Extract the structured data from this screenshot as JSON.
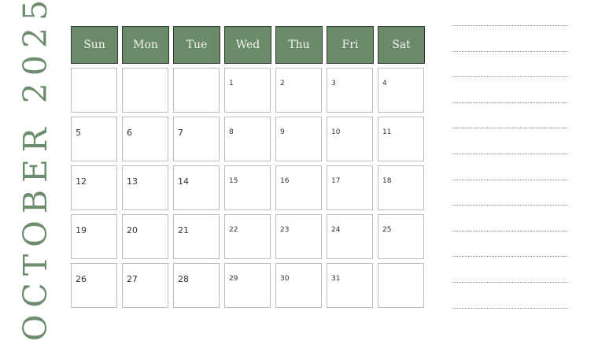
{
  "title": "OCTOBER 2025",
  "accent_color": "#6a8a6a",
  "weekdays": [
    "Sun",
    "Mon",
    "Tue",
    "Wed",
    "Thu",
    "Fri",
    "Sat"
  ],
  "weeks": [
    [
      "",
      "",
      "",
      "1",
      "2",
      "3",
      "4"
    ],
    [
      "5",
      "6",
      "7",
      "8",
      "9",
      "10",
      "11"
    ],
    [
      "12",
      "13",
      "14",
      "15",
      "16",
      "17",
      "18"
    ],
    [
      "19",
      "20",
      "21",
      "22",
      "23",
      "24",
      "25"
    ],
    [
      "26",
      "27",
      "28",
      "29",
      "30",
      "31",
      ""
    ]
  ],
  "notes_lines": 12
}
